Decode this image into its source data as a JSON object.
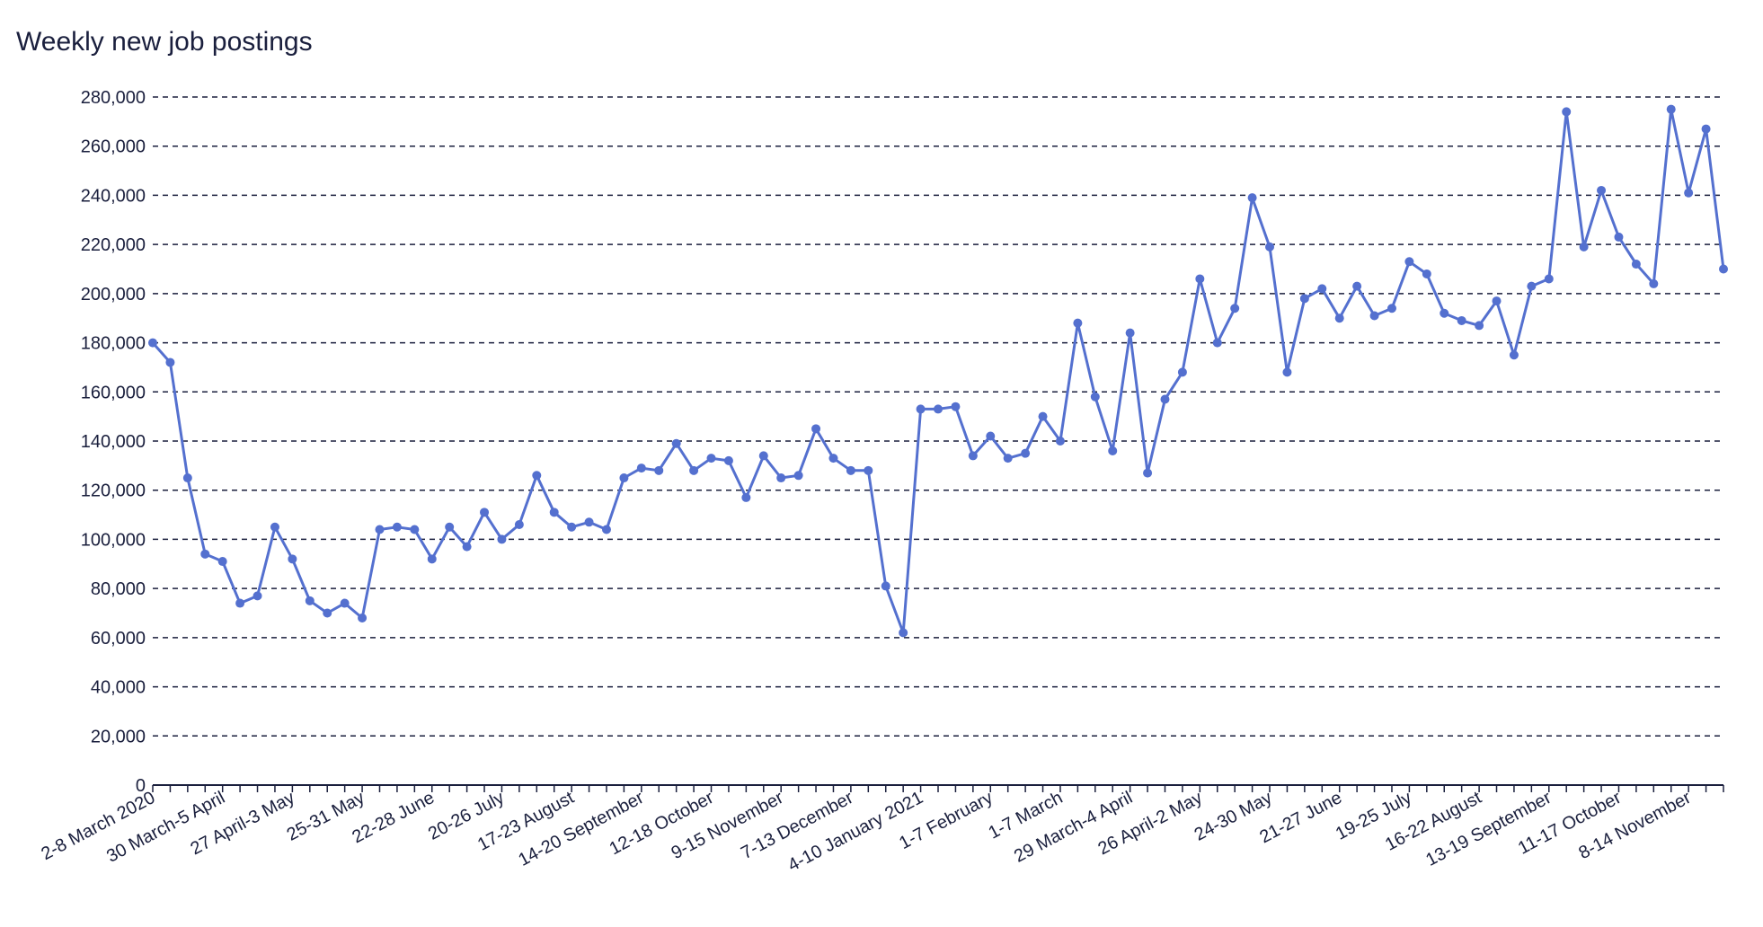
{
  "chart_data": {
    "type": "line",
    "title": "Weekly new job postings",
    "xlabel": "",
    "ylabel": "",
    "ylim": [
      0,
      280000
    ],
    "y_ticks": [
      0,
      20000,
      40000,
      60000,
      80000,
      100000,
      120000,
      140000,
      160000,
      180000,
      200000,
      220000,
      240000,
      260000,
      280000
    ],
    "y_tick_labels": [
      "0",
      "20,000",
      "40,000",
      "60,000",
      "80,000",
      "100,000",
      "120,000",
      "140,000",
      "160,000",
      "180,000",
      "200,000",
      "220,000",
      "240,000",
      "260,000",
      "280,000"
    ],
    "grid": "horizontal dashed",
    "line_color": "#5470cf",
    "x_tick_labels": [
      {
        "index": 0,
        "label": "2-8 March 2020"
      },
      {
        "index": 4,
        "label": "30 March-5 April"
      },
      {
        "index": 8,
        "label": "27 April-3 May"
      },
      {
        "index": 12,
        "label": "25-31 May"
      },
      {
        "index": 16,
        "label": "22-28 June"
      },
      {
        "index": 20,
        "label": "20-26 July"
      },
      {
        "index": 24,
        "label": "17-23 August"
      },
      {
        "index": 28,
        "label": "14-20 September"
      },
      {
        "index": 32,
        "label": "12-18 October"
      },
      {
        "index": 36,
        "label": "9-15 November"
      },
      {
        "index": 40,
        "label": "7-13 December"
      },
      {
        "index": 44,
        "label": "4-10 January 2021"
      },
      {
        "index": 48,
        "label": "1-7 February"
      },
      {
        "index": 52,
        "label": "1-7 March"
      },
      {
        "index": 56,
        "label": "29 March-4 April"
      },
      {
        "index": 60,
        "label": "26 April-2 May"
      },
      {
        "index": 64,
        "label": "24-30 May"
      },
      {
        "index": 68,
        "label": "21-27 June"
      },
      {
        "index": 72,
        "label": "19-25 July"
      },
      {
        "index": 76,
        "label": "16-22 August"
      },
      {
        "index": 80,
        "label": "13-19 September"
      },
      {
        "index": 84,
        "label": "11-17 October"
      },
      {
        "index": 88,
        "label": "8-14 November"
      }
    ],
    "series": [
      {
        "values": [
          180000,
          172000,
          125000,
          94000,
          91000,
          74000,
          77000,
          105000,
          92000,
          75000,
          70000,
          74000,
          68000,
          104000,
          105000,
          104000,
          92000,
          105000,
          97000,
          111000,
          100000,
          106000,
          126000,
          111000,
          105000,
          107000,
          104000,
          125000,
          129000,
          128000,
          139000,
          128000,
          133000,
          132000,
          117000,
          134000,
          125000,
          126000,
          145000,
          133000,
          128000,
          128000,
          81000,
          62000,
          153000,
          153000,
          154000,
          134000,
          142000,
          133000,
          135000,
          150000,
          140000,
          188000,
          158000,
          136000,
          184000,
          127000,
          157000,
          168000,
          206000,
          180000,
          194000,
          239000,
          219000,
          168000,
          198000,
          202000,
          190000,
          203000,
          191000,
          194000,
          213000,
          208000,
          192000,
          189000,
          187000,
          197000,
          175000,
          203000,
          206000,
          274000,
          219000,
          242000,
          223000,
          212000,
          204000,
          275000,
          241000,
          267000,
          210000
        ]
      }
    ]
  }
}
